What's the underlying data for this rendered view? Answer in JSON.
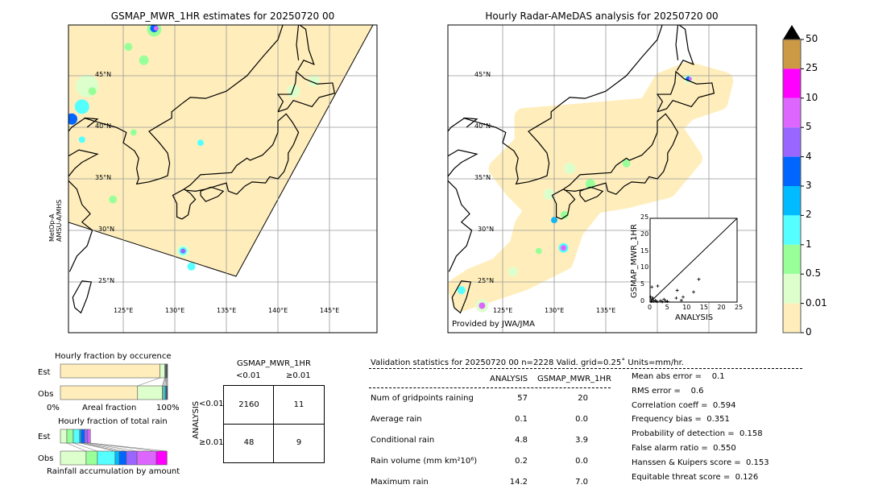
{
  "left_map": {
    "title": "GSMAP_MWR_1HR estimates for 20250720 00",
    "side_label_1": "MetOp-A",
    "side_label_2": "AMSU-A/MHS",
    "lat_labels": [
      "45°N",
      "40°N",
      "35°N",
      "30°N",
      "25°N"
    ],
    "lon_labels": [
      "125°E",
      "130°E",
      "135°E",
      "140°E",
      "145°E"
    ]
  },
  "right_map": {
    "title": "Hourly Radar-AMeDAS analysis for 20250720 00",
    "credit": "Provided by JWA/JMA",
    "lat_labels": [
      "45°N",
      "40°N",
      "35°N",
      "30°N",
      "25°N"
    ],
    "lon_labels": [
      "125°E",
      "130°E",
      "135°E"
    ]
  },
  "colorbar": {
    "labels": [
      "50",
      "25",
      "10",
      "5",
      "4",
      "3",
      "2",
      "1",
      "0.5",
      "0.01",
      "0"
    ],
    "colors": [
      "#cc9944",
      "#ff00ff",
      "#dd66ff",
      "#9966ff",
      "#0066ff",
      "#00bbff",
      "#55ffff",
      "#99ff99",
      "#ddffcc",
      "#ffeebb"
    ],
    "extend_color": "#000000"
  },
  "chart_data": [
    {
      "type": "scatter",
      "xlabel": "ANALYSIS",
      "ylabel": "GSMAP_MWR_1HR",
      "xlim": [
        0,
        25
      ],
      "ylim": [
        0,
        25
      ],
      "xticks": [
        "0",
        "5",
        "10",
        "15",
        "20",
        "25"
      ],
      "yticks": [
        "0",
        "5",
        "10",
        "15",
        "20",
        "25"
      ],
      "points": [
        [
          0.5,
          4.5
        ],
        [
          2.2,
          4.8
        ],
        [
          7.8,
          3.5
        ],
        [
          7.5,
          1.2
        ],
        [
          9.5,
          1.5
        ],
        [
          9,
          0.5
        ],
        [
          12.5,
          3
        ],
        [
          14,
          6.8
        ],
        [
          0.2,
          1.5
        ],
        [
          0.5,
          0.8
        ],
        [
          1,
          0.3
        ],
        [
          1.5,
          0.5
        ],
        [
          2,
          0.2
        ],
        [
          3,
          0.4
        ],
        [
          4,
          0.8
        ],
        [
          4.5,
          0.3
        ],
        [
          5,
          0.2
        ],
        [
          0.3,
          0.2
        ],
        [
          0.8,
          1.2
        ],
        [
          3.5,
          0.1
        ]
      ]
    },
    {
      "type": "bar",
      "title": "Hourly fraction by occurence",
      "categories": [
        "Est",
        "Obs"
      ],
      "xlabel": "Areal fraction",
      "xticks": [
        "0%",
        "100%"
      ],
      "series": [
        {
          "color": "#ffeebb",
          "values": [
            93,
            72
          ]
        },
        {
          "color": "#ddffcc",
          "values": [
            4.5,
            23
          ]
        },
        {
          "color": "#99ff99",
          "values": [
            0.5,
            1
          ]
        },
        {
          "color": "#55ffff",
          "values": [
            0.5,
            1.5
          ]
        },
        {
          "color": "#00bbff",
          "values": [
            0.5,
            1
          ]
        },
        {
          "color": "#0066ff",
          "values": [
            0.5,
            0.8
          ]
        },
        {
          "color": "#333333",
          "values": [
            0.5,
            0.7
          ]
        }
      ]
    },
    {
      "type": "bar",
      "title": "Hourly fraction of total rain",
      "categories": [
        "Est",
        "Obs"
      ],
      "xlabel": "Rainfall accumulation by amount",
      "series": [
        {
          "color": "#ddffcc",
          "values": [
            6,
            24
          ]
        },
        {
          "color": "#99ff99",
          "values": [
            6,
            10.5
          ]
        },
        {
          "color": "#55ffff",
          "values": [
            6,
            16.5
          ]
        },
        {
          "color": "#00bbff",
          "values": [
            1.5,
            4
          ]
        },
        {
          "color": "#0066ff",
          "values": [
            3,
            6.5
          ]
        },
        {
          "color": "#9966ff",
          "values": [
            3,
            10
          ]
        },
        {
          "color": "#dd66ff",
          "values": [
            2.5,
            18
          ]
        },
        {
          "color": "#ff00ff",
          "values": [
            0,
            10
          ]
        }
      ]
    }
  ],
  "contingency": {
    "col_title": "GSMAP_MWR_1HR",
    "row_title": "ANALYSIS",
    "col_labels": [
      "<0.01",
      "≥0.01"
    ],
    "row_labels": [
      "<0.01",
      "≥0.01"
    ],
    "cells": [
      [
        "2160",
        "11"
      ],
      [
        "48",
        "9"
      ]
    ]
  },
  "stats": {
    "header": "Validation statistics for 20250720 00  n=2228 Valid. grid=0.25˚ Units=mm/hr.",
    "columns": [
      "ANALYSIS",
      "GSMAP_MWR_1HR"
    ],
    "rows": [
      {
        "label": "Num of gridpoints raining",
        "a": "57",
        "g": "20"
      },
      {
        "label": "Average rain",
        "a": "0.1",
        "g": "0.0"
      },
      {
        "label": "Conditional rain",
        "a": "4.8",
        "g": "3.9"
      },
      {
        "label": "Rain volume (mm km²10⁶)",
        "a": "0.2",
        "g": "0.0"
      },
      {
        "label": "Maximum rain",
        "a": "14.2",
        "g": "7.0"
      }
    ],
    "scores": [
      "Mean abs error =    0.1",
      "RMS error =    0.6",
      "Correlation coeff =  0.594",
      "Frequency bias =  0.351",
      "Probability of detection =  0.158",
      "False alarm ratio =  0.550",
      "Hanssen & Kuipers score =  0.153",
      "Equitable threat score =  0.126"
    ]
  }
}
